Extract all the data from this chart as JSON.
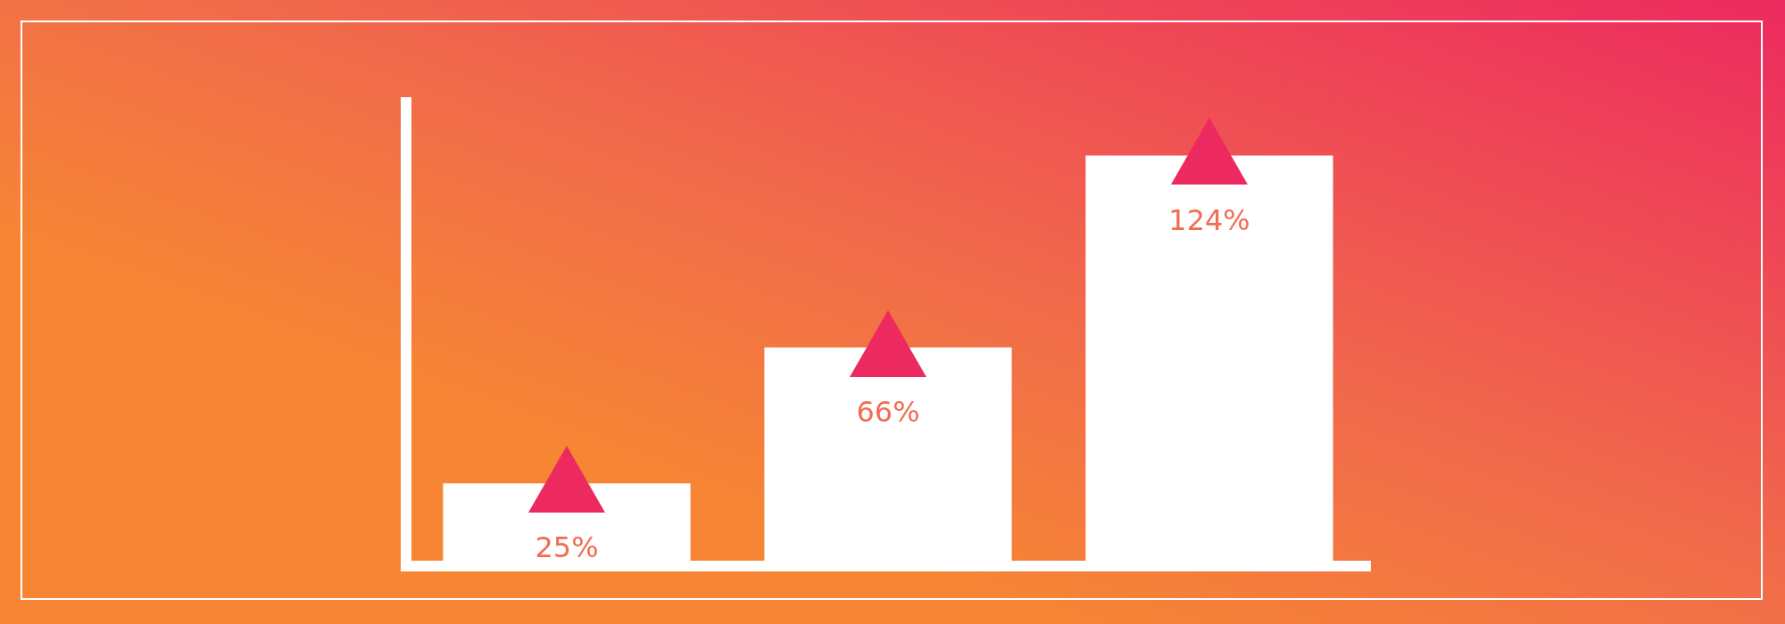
{
  "chart_data": {
    "type": "bar",
    "categories": [
      null,
      null,
      null
    ],
    "values": [
      25,
      66,
      124
    ],
    "value_labels": [
      "25%",
      "66%",
      "124%"
    ],
    "color": "#ffffff",
    "tick_labels": false,
    "grid": false,
    "legend": false
  }
}
